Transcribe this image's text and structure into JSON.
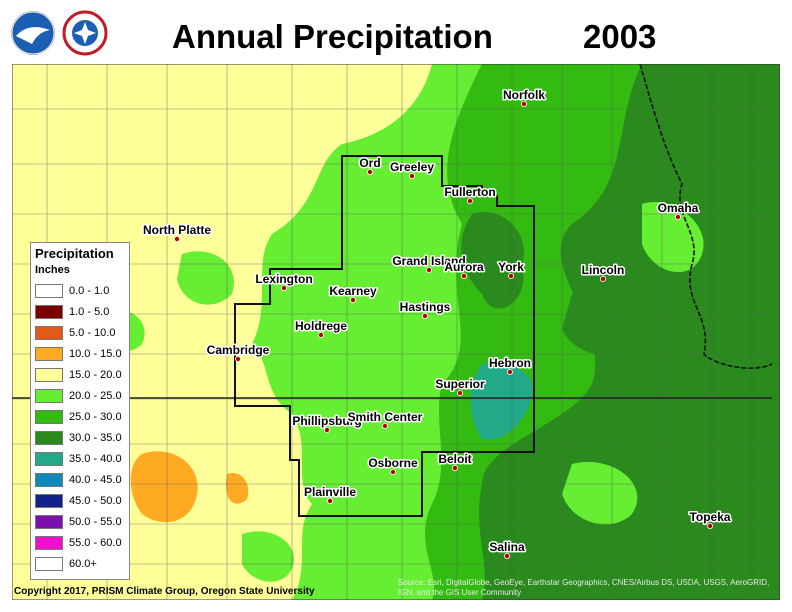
{
  "title": {
    "main": "Annual Precipitation",
    "year": "2003"
  },
  "logos": [
    {
      "name": "NOAA",
      "color": "#1a5fb4"
    },
    {
      "name": "National Weather Service",
      "color": "#c01c28"
    }
  ],
  "colors": {
    "c15_20": "#ffff99",
    "c15_20b": "#f9fc9a",
    "c20_25": "#66ee33",
    "c25_30": "#33bb11",
    "c30_35": "#2a8a1e",
    "c35_40": "#22aa88",
    "c10_15": "#ffaa22"
  },
  "legend": {
    "heading": "Precipitation",
    "unit": "Inches",
    "items": [
      {
        "label": "0.0 - 1.0",
        "color": "#ffffff"
      },
      {
        "label": "1.0 - 5.0",
        "color": "#7a0000"
      },
      {
        "label": "5.0 - 10.0",
        "color": "#e05a1a"
      },
      {
        "label": "10.0 - 15.0",
        "color": "#ffaa22"
      },
      {
        "label": "15.0 - 20.0",
        "color": "#ffff99"
      },
      {
        "label": "20.0 - 25.0",
        "color": "#66ee33"
      },
      {
        "label": "25.0 - 30.0",
        "color": "#33bb11"
      },
      {
        "label": "30.0 - 35.0",
        "color": "#2a8a1e"
      },
      {
        "label": "35.0 - 40.0",
        "color": "#22aa88"
      },
      {
        "label": "40.0 - 45.0",
        "color": "#1188bb"
      },
      {
        "label": "45.0 - 50.0",
        "color": "#112288"
      },
      {
        "label": "50.0 - 55.0",
        "color": "#7a11aa"
      },
      {
        "label": "55.0 - 60.0",
        "color": "#ee11cc"
      },
      {
        "label": "60.0+",
        "color": "#ffffff"
      }
    ]
  },
  "cities": [
    {
      "name": "Norfolk"
    },
    {
      "name": "Ord"
    },
    {
      "name": "Greeley"
    },
    {
      "name": "Fullerton"
    },
    {
      "name": "North Platte"
    },
    {
      "name": "Omaha"
    },
    {
      "name": "Grand Island"
    },
    {
      "name": "Aurora"
    },
    {
      "name": "York"
    },
    {
      "name": "Lincoln"
    },
    {
      "name": "Lexington"
    },
    {
      "name": "Kearney"
    },
    {
      "name": "Hastings"
    },
    {
      "name": "Holdrege"
    },
    {
      "name": "Cambridge"
    },
    {
      "name": "Hebron"
    },
    {
      "name": "Superior"
    },
    {
      "name": "Phillipsburg"
    },
    {
      "name": "Smith Center"
    },
    {
      "name": "Beloit"
    },
    {
      "name": "Osborne"
    },
    {
      "name": "Plainville"
    },
    {
      "name": "Topeka"
    },
    {
      "name": "Salina"
    }
  ],
  "copyright": "Copyright 2017, PRISM Climate Group, Oregon State University",
  "source": "Source: Esri, DigitalGlobe, GeoEye, Earthstar Geographics, CNES/Airbus DS, USDA, USGS, AeroGRID, IGN, and the GIS User Community"
}
